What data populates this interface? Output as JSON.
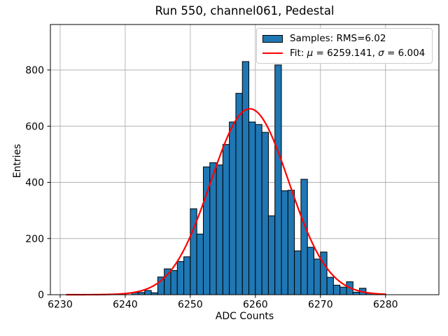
{
  "chart_data": {
    "type": "histogram",
    "title": "Run 550, channel061, Pedestal",
    "xlabel": "ADC Counts",
    "ylabel": "Entries",
    "xlim": [
      6228.5,
      6288.2
    ],
    "ylim": [
      0,
      962
    ],
    "grid": true,
    "grid_color": "#b0b0b0",
    "x_ticks": [
      6230,
      6240,
      6250,
      6260,
      6270,
      6280
    ],
    "y_ticks": [
      0,
      200,
      400,
      600,
      800
    ],
    "histogram": {
      "bin_start": 6241,
      "bin_width": 1,
      "counts": [
        8,
        8,
        15,
        7,
        63,
        92,
        86,
        118,
        135,
        306,
        216,
        455,
        470,
        462,
        535,
        615,
        717,
        830,
        615,
        606,
        578,
        281,
        818,
        370,
        372,
        156,
        411,
        169,
        127,
        152,
        62,
        34,
        27,
        46,
        9,
        23,
        6
      ],
      "fill_color": "#1f77b4",
      "edge_color": "#000000"
    },
    "fit_curve": {
      "mu": 6259.141,
      "sigma": 6.004,
      "peak_height": 662,
      "x_start": 6231,
      "x_end": 6280,
      "color": "#ff0000"
    },
    "legend": {
      "position": "upper-right",
      "samples_label": "Samples: RMS=6.02",
      "fit_prefix": "Fit: ",
      "mu_symbol": "μ",
      "mu_text": " = 6259.141, ",
      "sigma_symbol": "σ",
      "sigma_text": " = 6.004"
    }
  }
}
